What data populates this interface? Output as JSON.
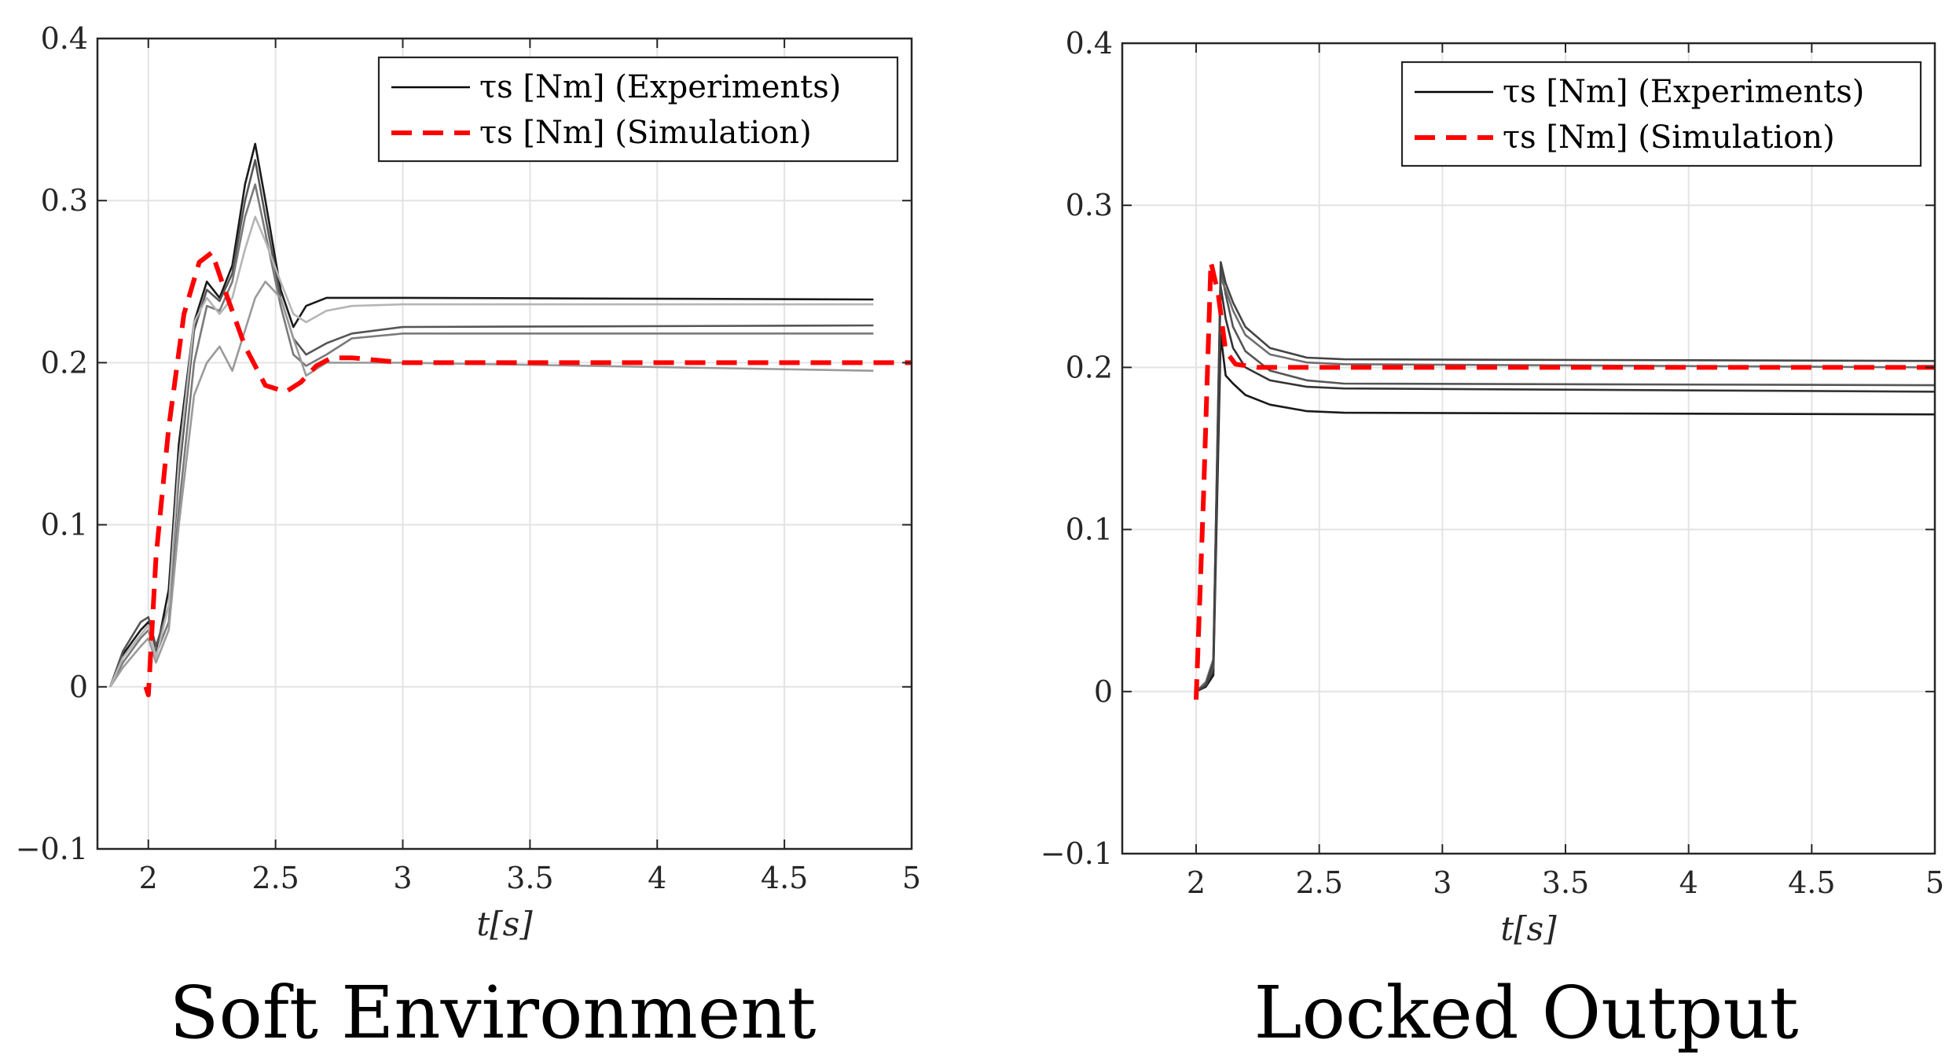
{
  "chart_data": [
    {
      "type": "line",
      "title": "Soft Environment",
      "xlabel": "t[s]",
      "ylabel": "",
      "xlim": [
        1.8,
        5
      ],
      "ylim": [
        -0.1,
        0.4
      ],
      "xticks": [
        "2",
        "2.5",
        "3",
        "3.5",
        "4",
        "4.5",
        "5"
      ],
      "xtick_values": [
        2,
        2.5,
        3,
        3.5,
        4,
        4.5,
        5
      ],
      "yticks": [
        "−0.1",
        "0",
        "0.1",
        "0.2",
        "0.3",
        "0.4"
      ],
      "ytick_values": [
        -0.1,
        0,
        0.1,
        0.2,
        0.3,
        0.4
      ],
      "grid": true,
      "legend_position": "top-right",
      "legend": [
        {
          "label": "τs [Nm] (Experiments)",
          "style": "solid",
          "color": "#000000"
        },
        {
          "label": "τs [Nm] (Simulation)",
          "style": "dashed",
          "color": "#ff0000"
        }
      ],
      "series": [
        {
          "name": "Simulation",
          "style": "dashed",
          "color": "#ff0000",
          "x": [
            1.99,
            2.0,
            2.03,
            2.08,
            2.14,
            2.2,
            2.25,
            2.3,
            2.38,
            2.46,
            2.54,
            2.6,
            2.66,
            2.72,
            2.8,
            3.0,
            3.5,
            5.0
          ],
          "y": [
            0.0,
            -0.005,
            0.08,
            0.16,
            0.23,
            0.262,
            0.268,
            0.245,
            0.21,
            0.186,
            0.182,
            0.188,
            0.198,
            0.203,
            0.203,
            0.2,
            0.2,
            0.2
          ]
        },
        {
          "name": "Experiment 1",
          "style": "solid",
          "color": "#1a1a1a",
          "x": [
            1.85,
            1.9,
            1.97,
            2.0,
            2.03,
            2.08,
            2.12,
            2.18,
            2.23,
            2.28,
            2.33,
            2.38,
            2.42,
            2.46,
            2.52,
            2.57,
            2.62,
            2.7,
            2.8,
            3.0,
            4.85
          ],
          "y": [
            0.0,
            0.02,
            0.035,
            0.04,
            0.02,
            0.06,
            0.15,
            0.225,
            0.25,
            0.24,
            0.26,
            0.31,
            0.335,
            0.3,
            0.245,
            0.222,
            0.235,
            0.24,
            0.24,
            0.24,
            0.239
          ]
        },
        {
          "name": "Experiment 2",
          "style": "solid",
          "color": "#555555",
          "x": [
            1.85,
            1.9,
            1.97,
            2.0,
            2.03,
            2.08,
            2.12,
            2.18,
            2.23,
            2.28,
            2.33,
            2.38,
            2.42,
            2.46,
            2.52,
            2.57,
            2.62,
            2.7,
            2.8,
            3.0,
            4.85
          ],
          "y": [
            0.0,
            0.022,
            0.04,
            0.043,
            0.025,
            0.05,
            0.13,
            0.22,
            0.245,
            0.238,
            0.255,
            0.3,
            0.325,
            0.29,
            0.24,
            0.215,
            0.205,
            0.212,
            0.218,
            0.222,
            0.223
          ]
        },
        {
          "name": "Experiment 3",
          "style": "solid",
          "color": "#7a7a7a",
          "x": [
            1.85,
            1.9,
            1.97,
            2.0,
            2.03,
            2.08,
            2.12,
            2.18,
            2.23,
            2.28,
            2.33,
            2.38,
            2.42,
            2.46,
            2.52,
            2.57,
            2.62,
            2.7,
            2.8,
            3.0,
            4.85
          ],
          "y": [
            0.0,
            0.015,
            0.03,
            0.035,
            0.02,
            0.04,
            0.11,
            0.2,
            0.235,
            0.232,
            0.25,
            0.29,
            0.31,
            0.28,
            0.235,
            0.205,
            0.198,
            0.205,
            0.215,
            0.218,
            0.218
          ]
        },
        {
          "name": "Experiment 4",
          "style": "solid",
          "color": "#9a9a9a",
          "x": [
            1.85,
            1.9,
            1.97,
            2.0,
            2.03,
            2.08,
            2.12,
            2.18,
            2.23,
            2.28,
            2.33,
            2.38,
            2.42,
            2.46,
            2.52,
            2.57,
            2.62,
            2.7,
            2.8,
            3.0,
            4.85
          ],
          "y": [
            0.0,
            0.012,
            0.025,
            0.03,
            0.015,
            0.035,
            0.1,
            0.18,
            0.2,
            0.21,
            0.195,
            0.22,
            0.24,
            0.25,
            0.24,
            0.215,
            0.192,
            0.2,
            0.2,
            0.2,
            0.195
          ]
        },
        {
          "name": "Experiment 5",
          "style": "solid",
          "color": "#b5b5b5",
          "x": [
            1.85,
            1.9,
            1.97,
            2.0,
            2.03,
            2.08,
            2.12,
            2.18,
            2.23,
            2.28,
            2.33,
            2.38,
            2.42,
            2.46,
            2.52,
            2.57,
            2.62,
            2.7,
            2.8,
            3.0,
            4.85
          ],
          "y": [
            0.0,
            0.018,
            0.032,
            0.038,
            0.018,
            0.05,
            0.14,
            0.225,
            0.24,
            0.23,
            0.24,
            0.27,
            0.29,
            0.275,
            0.25,
            0.23,
            0.225,
            0.232,
            0.235,
            0.236,
            0.236
          ]
        }
      ]
    },
    {
      "type": "line",
      "title": "Locked Output",
      "xlabel": "t[s]",
      "ylabel": "",
      "xlim": [
        1.7,
        5
      ],
      "ylim": [
        -0.1,
        0.4
      ],
      "xticks": [
        "2",
        "2.5",
        "3",
        "3.5",
        "4",
        "4.5",
        "5"
      ],
      "xtick_values": [
        2,
        2.5,
        3,
        3.5,
        4,
        4.5,
        5
      ],
      "yticks": [
        "−0.1",
        "0",
        "0.1",
        "0.2",
        "0.3",
        "0.4"
      ],
      "ytick_values": [
        -0.1,
        0,
        0.1,
        0.2,
        0.3,
        0.4
      ],
      "grid": true,
      "legend_position": "top-right",
      "legend": [
        {
          "label": "τs [Nm] (Experiments)",
          "style": "solid",
          "color": "#000000"
        },
        {
          "label": "τs [Nm] (Simulation)",
          "style": "dashed",
          "color": "#ff0000"
        }
      ],
      "series": [
        {
          "name": "Simulation",
          "style": "dashed",
          "color": "#ff0000",
          "x": [
            2.0,
            2.03,
            2.06,
            2.09,
            2.12,
            2.16,
            2.25,
            5.0
          ],
          "y": [
            -0.005,
            0.12,
            0.265,
            0.245,
            0.21,
            0.202,
            0.2,
            0.2
          ]
        },
        {
          "name": "Experiment 1",
          "style": "solid",
          "color": "#1a1a1a",
          "x": [
            2.0,
            2.04,
            2.07,
            2.1,
            2.12,
            2.15,
            2.2,
            2.3,
            2.45,
            2.6,
            5.0
          ],
          "y": [
            0.0,
            0.003,
            0.01,
            0.22,
            0.195,
            0.19,
            0.183,
            0.177,
            0.173,
            0.172,
            0.171
          ]
        },
        {
          "name": "Experiment 2",
          "style": "solid",
          "color": "#333333",
          "x": [
            2.0,
            2.04,
            2.07,
            2.1,
            2.12,
            2.15,
            2.2,
            2.3,
            2.45,
            2.6,
            5.0
          ],
          "y": [
            0.0,
            0.005,
            0.012,
            0.25,
            0.23,
            0.212,
            0.2,
            0.192,
            0.188,
            0.187,
            0.185
          ]
        },
        {
          "name": "Experiment 3",
          "style": "solid",
          "color": "#555555",
          "x": [
            2.0,
            2.04,
            2.07,
            2.1,
            2.12,
            2.15,
            2.2,
            2.3,
            2.45,
            2.6,
            5.0
          ],
          "y": [
            0.0,
            0.004,
            0.015,
            0.262,
            0.245,
            0.225,
            0.21,
            0.198,
            0.192,
            0.19,
            0.189
          ]
        },
        {
          "name": "Experiment 4",
          "style": "solid",
          "color": "#6e6e6e",
          "x": [
            2.0,
            2.04,
            2.07,
            2.1,
            2.12,
            2.15,
            2.2,
            2.3,
            2.45,
            2.6,
            5.0
          ],
          "y": [
            0.0,
            0.006,
            0.02,
            0.255,
            0.248,
            0.235,
            0.22,
            0.208,
            0.203,
            0.202,
            0.2
          ]
        },
        {
          "name": "Experiment 5",
          "style": "solid",
          "color": "#444444",
          "x": [
            2.0,
            2.04,
            2.07,
            2.1,
            2.12,
            2.15,
            2.2,
            2.3,
            2.45,
            2.6,
            5.0
          ],
          "y": [
            0.0,
            0.004,
            0.018,
            0.265,
            0.252,
            0.24,
            0.225,
            0.212,
            0.206,
            0.205,
            0.204
          ]
        }
      ]
    }
  ]
}
